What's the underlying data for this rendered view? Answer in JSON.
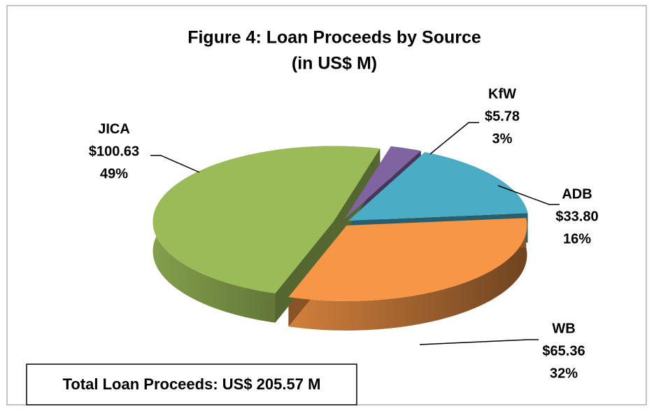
{
  "chart_data": {
    "type": "pie",
    "title": "Figure 4: Loan Proceeds by Source",
    "subtitle": "(in US$ M)",
    "categories": [
      "KfW",
      "ADB",
      "WB",
      "JICA"
    ],
    "values": [
      5.78,
      33.8,
      65.36,
      100.63
    ],
    "value_labels": [
      "$5.78",
      "$33.80",
      "$65.36",
      "$100.63"
    ],
    "percents": [
      3,
      16,
      32,
      49
    ],
    "percent_labels": [
      "3%",
      "16%",
      "32%",
      "49%"
    ],
    "colors": [
      "#8064a2",
      "#4bacc6",
      "#f79646",
      "#9bbb59"
    ],
    "annotation": "Total Loan Proceeds: US$ 205.57 M"
  }
}
